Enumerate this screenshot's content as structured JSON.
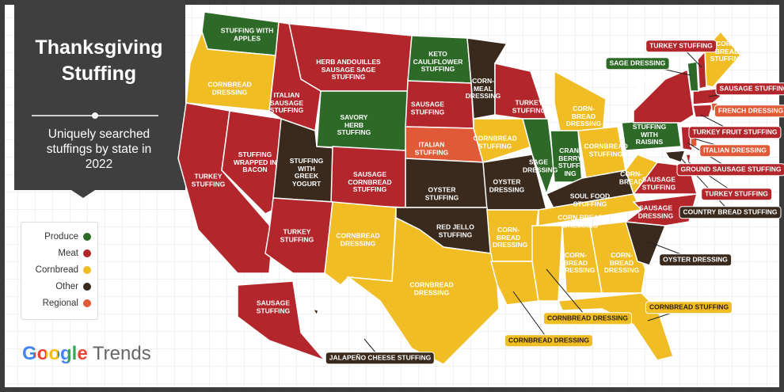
{
  "header": {
    "title": "Thanksgiving Stuffing",
    "subtitle": "Uniquely searched stuffings by state in 2022"
  },
  "legend": [
    {
      "name": "Produce",
      "color": "#2e6a27"
    },
    {
      "name": "Meat",
      "color": "#b3262c"
    },
    {
      "name": "Cornbread",
      "color": "#f0bd24"
    },
    {
      "name": "Other",
      "color": "#3a2a1d"
    },
    {
      "name": "Regional",
      "color": "#e05a38"
    }
  ],
  "labels": [
    {
      "text": "STUFFING WITH APPLES",
      "category": "Produce"
    },
    {
      "text": "CORNBREAD DRESSING",
      "category": "Cornbread"
    },
    {
      "text": "HERB ANDOUILLES SAUSAGE SAGE STUFFING",
      "category": "Meat"
    },
    {
      "text": "ITALIAN SAUSAGE STUFFING",
      "category": "Meat"
    },
    {
      "text": "KETO CAULIFLOWER STUFFING",
      "category": "Produce"
    },
    {
      "text": "CORN-MEAL DRESSING",
      "category": "Other"
    },
    {
      "text": "SAVORY HERB STUFFING",
      "category": "Produce"
    },
    {
      "text": "SAUSAGE STUFFING",
      "category": "Meat"
    },
    {
      "text": "TURKEY STUFFING",
      "category": "Meat"
    },
    {
      "text": "CORN-BREAD DRESSING",
      "category": "Cornbread"
    },
    {
      "text": "TURKEY STUFFING",
      "category": "Meat"
    },
    {
      "text": "STUFFING WRAPPED IN BACON",
      "category": "Meat"
    },
    {
      "text": "STUFFING WITH GREEK YOGURT",
      "category": "Other"
    },
    {
      "text": "ITALIAN STUFFING",
      "category": "Regional"
    },
    {
      "text": "CORNBREAD STUFFING",
      "category": "Cornbread"
    },
    {
      "text": "SAUSAGE CORNBREAD STUFFING",
      "category": "Meat"
    },
    {
      "text": "OYSTER STUFFING",
      "category": "Other"
    },
    {
      "text": "OYSTER DRESSING",
      "category": "Other"
    },
    {
      "text": "SAGE DRESSING",
      "category": "Produce"
    },
    {
      "text": "CRAN-BERRY STUFF-ING",
      "category": "Produce"
    },
    {
      "text": "CORNBREAD STUFFING",
      "category": "Cornbread"
    },
    {
      "text": "STUFFING WITH RAISINS",
      "category": "Produce"
    },
    {
      "text": "CORN-BREAD",
      "category": "Cornbread"
    },
    {
      "text": "SOUL FOOD STUFFING",
      "category": "Other"
    },
    {
      "text": "TURKEY STUFFING",
      "category": "Meat"
    },
    {
      "text": "CORNBREAD DRESSING",
      "category": "Cornbread"
    },
    {
      "text": "RED JELLO STUFFING",
      "category": "Other"
    },
    {
      "text": "CORN-BREAD DRESSING",
      "category": "Cornbread"
    },
    {
      "text": "CORN BREAD DRESSING",
      "category": "Cornbread"
    },
    {
      "text": "CORNBREAD DRESSING",
      "category": "Cornbread"
    },
    {
      "text": "CORN-BREAD DRESSING",
      "category": "Cornbread"
    },
    {
      "text": "CORN-BREAD DRESSING",
      "category": "Cornbread"
    },
    {
      "text": "SAUSAGE STUFFING",
      "category": "Meat"
    },
    {
      "text": "JALAPEÑO CHEESE STUFFING",
      "category": "Other"
    },
    {
      "text": "CORNBREAD DRESSING",
      "category": "Cornbread"
    },
    {
      "text": "CORNBREAD DRESSING",
      "category": "Cornbread"
    },
    {
      "text": "CORNBREAD STUFFING",
      "category": "Cornbread"
    },
    {
      "text": "OYSTER DRESSING",
      "category": "Other"
    },
    {
      "text": "SAUSAGE DRESSING",
      "category": "Meat"
    },
    {
      "text": "SAUSAGE STUFFING",
      "category": "Meat"
    },
    {
      "text": "COUNTRY BREAD STUFFING",
      "category": "Other"
    },
    {
      "text": "TURKEY STUFFING",
      "category": "Meat"
    },
    {
      "text": "GROUND SAUSAGE STUFFING",
      "category": "Meat"
    },
    {
      "text": "ITALIAN DRESSING",
      "category": "Regional"
    },
    {
      "text": "TURKEY FRUIT STUFFING",
      "category": "Meat"
    },
    {
      "text": "FRENCH DRESSING",
      "category": "Regional"
    },
    {
      "text": "SAUSAGE STUFFING",
      "category": "Meat"
    },
    {
      "text": "SAUSAGE STUFFING",
      "category": "Meat"
    },
    {
      "text": "SAGE DRESSING",
      "category": "Produce"
    },
    {
      "text": "TURKEY STUFFING",
      "category": "Meat"
    },
    {
      "text": "CORN-BREAD STUFFING",
      "category": "Cornbread"
    }
  ],
  "brand": {
    "google": "Google",
    "product": "Trends"
  }
}
